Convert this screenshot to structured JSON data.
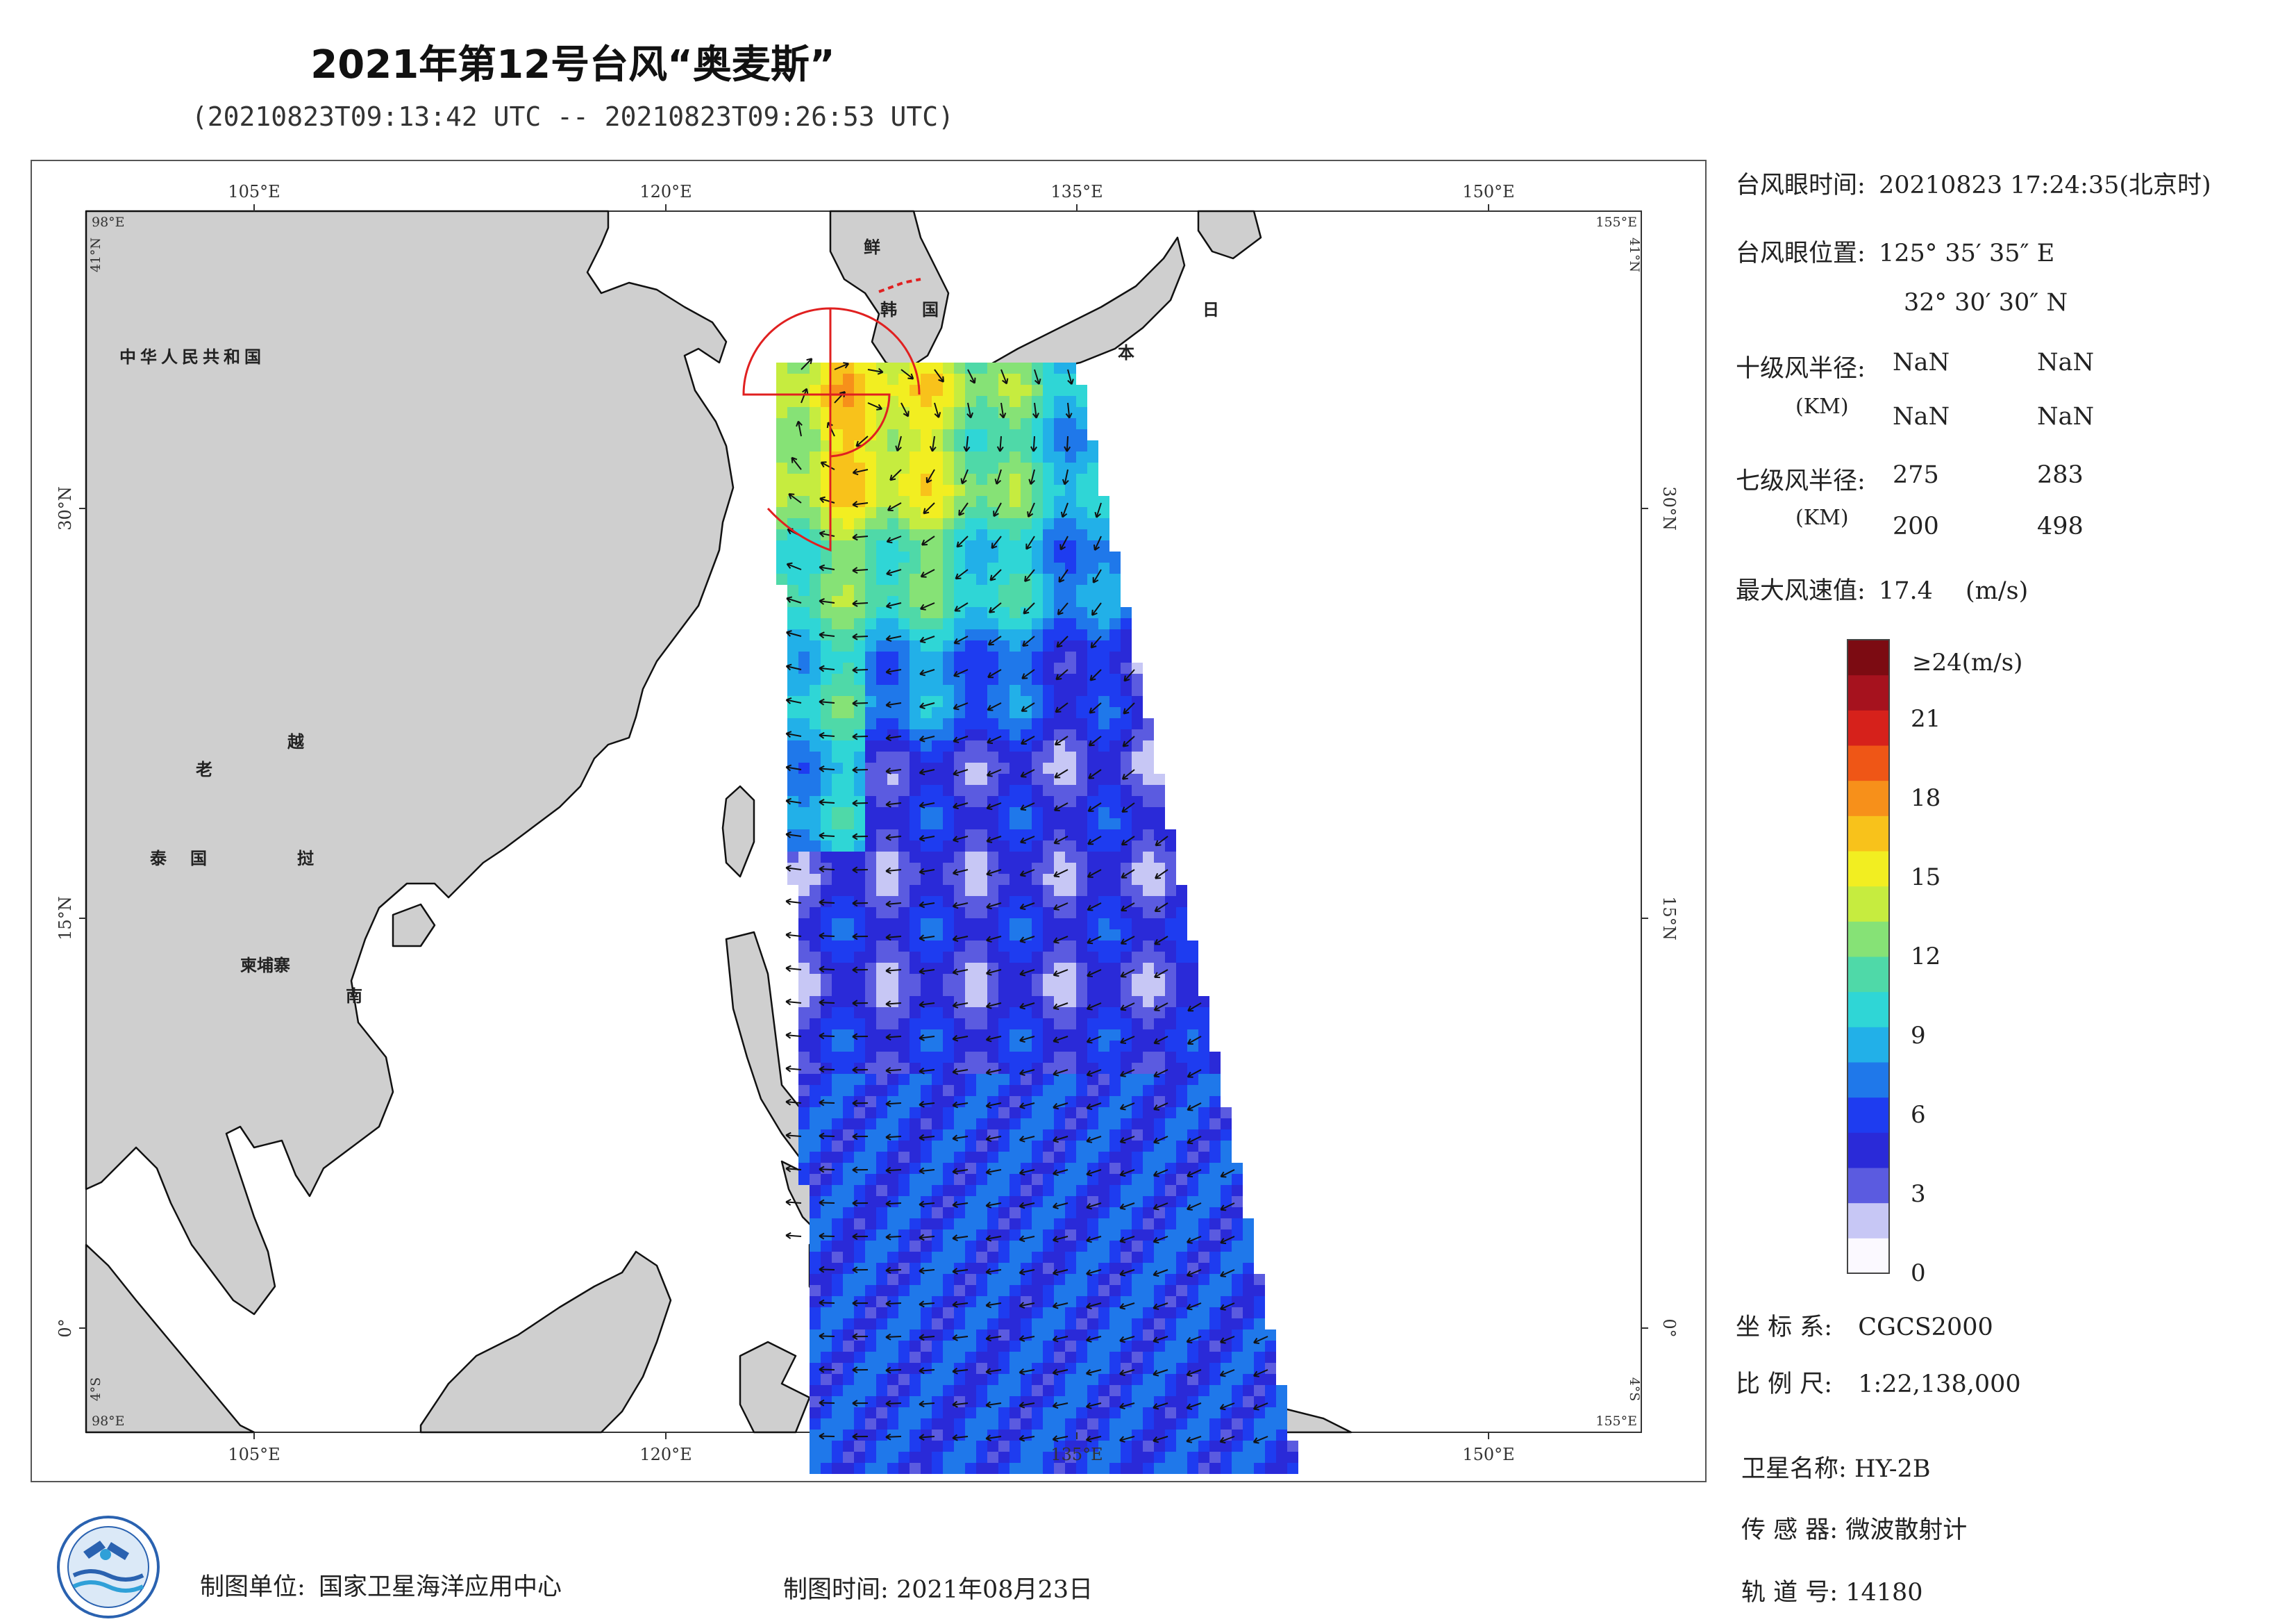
{
  "title": "2021年第12号台风“奥麦斯”",
  "subtitle": "(20210823T09:13:42 UTC -- 20210823T09:26:53 UTC)",
  "map": {
    "lon_labels": [
      "105°E",
      "120°E",
      "135°E",
      "150°E"
    ],
    "lat_labels": [
      "30°N",
      "15°N",
      "0°"
    ],
    "corner_labels": {
      "top_left_lon": "98°E",
      "top_right_lon": "155°E",
      "top_left_lat": "41°N",
      "top_right_lat": "41°N",
      "bottom_left_lat": "4°S",
      "bottom_right_lat": "4°S",
      "bottom_left_lon": "98°E",
      "bottom_right_lon": "155°E"
    },
    "country_labels": {
      "china": "中华人民共和国",
      "korea_1": "鲜",
      "korea_2": "韩",
      "korea_3": "国",
      "japan_1": "日",
      "japan_2": "本",
      "laos": "老",
      "thailand": "泰",
      "thailand_2": "国",
      "cambodia": "柬埔寨",
      "vietnam_1": "越",
      "vietnam_2": "挝",
      "vietnam_3": "南"
    },
    "land_color": "#cfcfcf",
    "sea_color": "#ffffff",
    "track_color": "#e02020"
  },
  "info_panel": {
    "eye_time_label": "台风眼时间:",
    "eye_time_value": "20210823 17:24:35(北京时)",
    "eye_pos_label": "台风眼位置:",
    "eye_lon": "125° 35′ 35″ E",
    "eye_lat": "32° 30′ 30″ N",
    "r10_label": "十级风半径:",
    "r10_unit": "(KM)",
    "r10_values": [
      "NaN",
      "NaN",
      "NaN",
      "NaN"
    ],
    "r7_label": "七级风半径:",
    "r7_unit": "(KM)",
    "r7_values": [
      "275",
      "283",
      "200",
      "498"
    ],
    "max_wind_label": "最大风速值:",
    "max_wind_value": "17.4",
    "max_wind_unit": "(m/s)"
  },
  "colorbar": {
    "top_label": "≥24(m/s)",
    "ticks": [
      "21",
      "18",
      "15",
      "12",
      "9",
      "6",
      "3",
      "0"
    ],
    "colors": [
      "#fbf9ff",
      "#c7c7f5",
      "#5b5be0",
      "#2a2ad8",
      "#1e3cf0",
      "#1f78ea",
      "#22b0e8",
      "#2fd6d6",
      "#4fd9a8",
      "#86e276",
      "#c6ec3f",
      "#f2ee21",
      "#f8c21b",
      "#f7901a",
      "#ef5616",
      "#d6211b",
      "#a6121e",
      "#7c0b12"
    ]
  },
  "meta": {
    "coord_label": "坐 标 系:",
    "coord_value": "CGCS2000",
    "scale_label": "比 例 尺:",
    "scale_value": "1:22,138,000",
    "sat_label": "卫星名称:",
    "sat_value": "HY-2B",
    "sensor_label": "传 感 器:",
    "sensor_value": "微波散射计",
    "orbit_label": "轨 道 号:",
    "orbit_value": "14180"
  },
  "footer": {
    "unit_label": "制图单位:",
    "unit_value": "国家卫星海洋应用中心",
    "date_label": "制图时间:",
    "date_value": "2021年08月23日"
  },
  "chart_data": {
    "type": "heatmap",
    "title": "2021年第12号台风“奥麦斯”",
    "colorbar_range": [
      0,
      24
    ],
    "colorbar_unit": "m/s",
    "max_wind": 17.4,
    "typhoon_eye": {
      "lon": "125° 35′ 35″ E",
      "lat": "32° 30′ 30″ N"
    },
    "r7_km": [
      275,
      283,
      200,
      498
    ],
    "r10_km": [
      "NaN",
      "NaN",
      "NaN",
      "NaN"
    ]
  }
}
